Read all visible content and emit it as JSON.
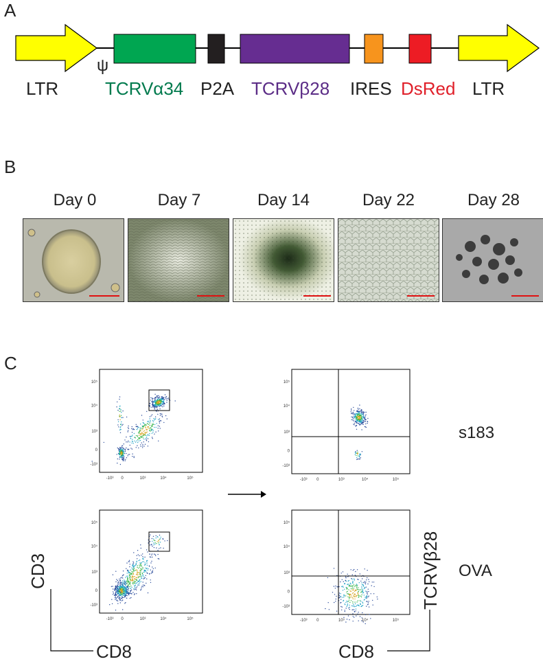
{
  "panels": {
    "a": "A",
    "b": "B",
    "c": "C"
  },
  "construct": {
    "psi": "ψ",
    "labels": {
      "ltr_left": "LTR",
      "tcra": "TCRVα34",
      "p2a": "P2A",
      "tcrb": "TCRVβ28",
      "ires": "IRES",
      "dsred": "DsRed",
      "ltr_right": "LTR"
    },
    "colors": {
      "ltr": "#ffff00",
      "tcra": "#00a651",
      "p2a": "#231f20",
      "tcrb": "#662d91",
      "ires": "#f7941d",
      "dsred": "#ed1c24",
      "tcra_text": "#007a4d",
      "tcrb_text": "#5b2c86",
      "dsred_text": "#e0202a"
    }
  },
  "days": [
    "Day 0",
    "Day 7",
    "Day 14",
    "Day 22",
    "Day 28"
  ],
  "flow": {
    "samples": [
      "s183",
      "OVA"
    ],
    "left_axes": {
      "y": "CD3",
      "x": "CD8"
    },
    "right_axes": {
      "y": "TCRVβ28",
      "x": "CD8"
    },
    "x_ticks": [
      "-10³",
      "0",
      "10³",
      "10⁴",
      "10⁵"
    ],
    "y_ticks": [
      "10⁵",
      "10⁴",
      "10³",
      "0",
      "-10³"
    ],
    "arrow_icon": "right-arrow-icon"
  }
}
